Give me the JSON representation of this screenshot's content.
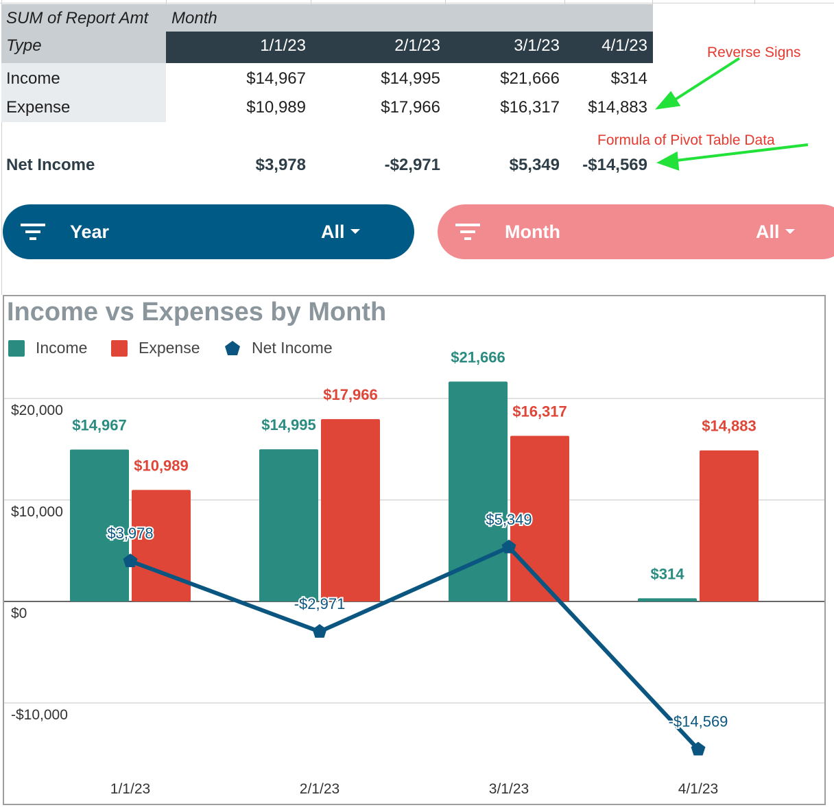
{
  "pivot": {
    "header_value_label": "SUM of Report Amt",
    "header_column_field": "Month",
    "row_field_label": "Type",
    "columns": [
      "1/1/23",
      "2/1/23",
      "3/1/23",
      "4/1/23"
    ],
    "rows": [
      {
        "label": "Income",
        "values": [
          "$14,967",
          "$14,995",
          "$21,666",
          "$314"
        ]
      },
      {
        "label": "Expense",
        "values": [
          "$10,989",
          "$17,966",
          "$16,317",
          "$14,883"
        ]
      }
    ],
    "net_row": {
      "label": "Net Income",
      "values": [
        "$3,978",
        "-$2,971",
        "$5,349",
        "-$14,569"
      ]
    }
  },
  "annotations": {
    "reverse_signs": "Reverse Signs",
    "formula_note": "Formula of Pivot Table Data",
    "arrow_color": "#22e23a",
    "text_color": "#e8392f"
  },
  "filters": [
    {
      "label": "Year",
      "value": "All",
      "color": "#005a86",
      "icon": "filter-icon"
    },
    {
      "label": "Month",
      "value": "All",
      "color": "#f28b90",
      "icon": "filter-icon"
    }
  ],
  "chart_data": {
    "type": "bar",
    "title": "Income vs Expenses by Month",
    "categories": [
      "1/1/23",
      "2/1/23",
      "3/1/23",
      "4/1/23"
    ],
    "series": [
      {
        "name": "Income",
        "type": "bar",
        "color": "#2a8c80",
        "values": [
          14967,
          14995,
          21666,
          314
        ],
        "labels": [
          "$14,967",
          "$14,995",
          "$21,666",
          "$314"
        ]
      },
      {
        "name": "Expense",
        "type": "bar",
        "color": "#df4638",
        "values": [
          10989,
          17966,
          16317,
          14883
        ],
        "labels": [
          "$10,989",
          "$17,966",
          "$16,317",
          "$14,883"
        ]
      },
      {
        "name": "Net Income",
        "type": "line",
        "color": "#0a5680",
        "values": [
          3978,
          -2971,
          5349,
          -14569
        ],
        "labels": [
          "$3,978",
          "-$2,971",
          "$5,349",
          "-$14,569"
        ]
      }
    ],
    "ylim": [
      -15000,
      25000
    ],
    "yticks": [
      20000,
      10000,
      0,
      -10000
    ],
    "ytick_labels": [
      "$20,000",
      "$10,000",
      "$0",
      "-$10,000"
    ],
    "grid": true,
    "legend_position": "top-left"
  }
}
